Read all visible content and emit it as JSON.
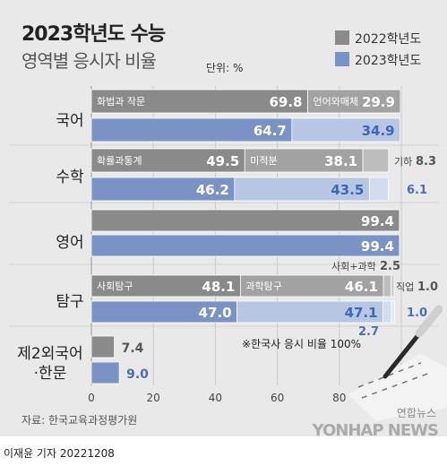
{
  "title": "2023학년도 수능",
  "subtitle": "영역별 응시자 비율",
  "unit": "단위: %",
  "legend": [
    {
      "label": "2022학년도",
      "color": "#8a8a8a"
    },
    {
      "label": "2023학년도",
      "color": "#7a93c4"
    }
  ],
  "note": "※한국사 응시 비율 100%",
  "source": "자료: 한국교육과정평가원",
  "credit": "이재윤 기자  20221208",
  "brand": "YONHAP NEWS",
  "brand_small": "연합뉴스",
  "chart_data": {
    "type": "bar",
    "orientation": "horizontal-stacked",
    "xlim": [
      0,
      100
    ],
    "xticks": [
      "0",
      "20",
      "40",
      "60",
      "80",
      "100"
    ],
    "series_names": [
      "2022학년도",
      "2023학년도"
    ],
    "groups": [
      {
        "category": "국어",
        "rows": [
          {
            "year": "2022",
            "segments": [
              {
                "label": "화법과 작문",
                "value": 69.8
              },
              {
                "label": "언어와매체",
                "value": 29.9
              }
            ]
          },
          {
            "year": "2023",
            "segments": [
              {
                "label": "",
                "value": 64.7
              },
              {
                "label": "",
                "value": 34.9
              }
            ]
          }
        ]
      },
      {
        "category": "수학",
        "rows": [
          {
            "year": "2022",
            "segments": [
              {
                "label": "확률과통계",
                "value": 49.5
              },
              {
                "label": "미적분",
                "value": 38.1
              },
              {
                "label": "기하",
                "value": 8.3
              }
            ]
          },
          {
            "year": "2023",
            "segments": [
              {
                "label": "",
                "value": 46.2
              },
              {
                "label": "",
                "value": 43.5
              },
              {
                "label": "",
                "value": 6.1
              }
            ]
          }
        ]
      },
      {
        "category": "영어",
        "rows": [
          {
            "year": "2022",
            "segments": [
              {
                "label": "",
                "value": 99.4
              }
            ]
          },
          {
            "year": "2023",
            "segments": [
              {
                "label": "",
                "value": 99.4
              }
            ]
          }
        ]
      },
      {
        "category": "탐구",
        "rows": [
          {
            "year": "2022",
            "segments": [
              {
                "label": "사회탐구",
                "value": 48.1
              },
              {
                "label": "과학탐구",
                "value": 46.1
              },
              {
                "label": "사회+과학",
                "value": 2.5
              },
              {
                "label": "직업",
                "value": 1.0
              }
            ]
          },
          {
            "year": "2023",
            "segments": [
              {
                "label": "",
                "value": 47.0
              },
              {
                "label": "",
                "value": 47.1
              },
              {
                "label": "",
                "value": 2.7
              },
              {
                "label": "",
                "value": 1.0
              }
            ]
          }
        ]
      },
      {
        "category": "제2외국어·한문",
        "rows": [
          {
            "year": "2022",
            "segments": [
              {
                "label": "",
                "value": 7.4
              }
            ]
          },
          {
            "year": "2023",
            "segments": [
              {
                "label": "",
                "value": 9.0
              }
            ]
          }
        ]
      }
    ]
  }
}
